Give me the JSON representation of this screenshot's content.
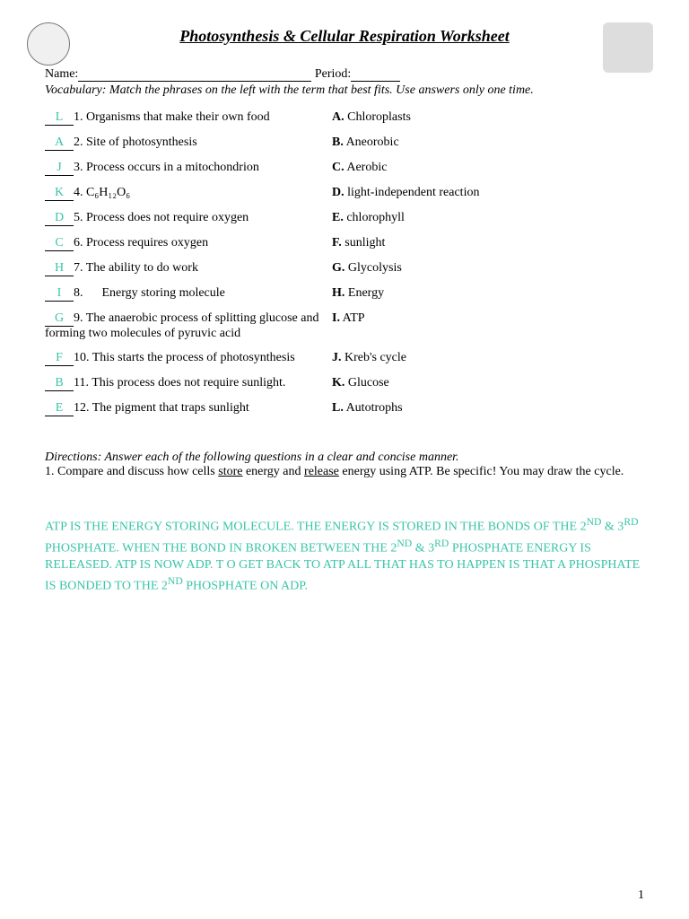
{
  "colors": {
    "answer": "#39c4a8",
    "text": "#000000",
    "bg": "#ffffff"
  },
  "title": "Photosynthesis & Cellular Respiration Worksheet",
  "name_label": "Name:",
  "period_label": "Period:",
  "vocab_instructions": "Vocabulary: Match the phrases on the left with the term that best fits. Use answers only one time.",
  "questions": [
    {
      "ans": "L",
      "num": "1.",
      "text": "Organisms that make their own food"
    },
    {
      "ans": "A",
      "num": "2.",
      "text": "Site of photosynthesis"
    },
    {
      "ans": "J",
      "num": "3.",
      "text": "Process occurs in a mitochondrion"
    },
    {
      "ans": "K",
      "num": "4.",
      "text": "C₆H₁₂O₆"
    },
    {
      "ans": "D",
      "num": "5.",
      "text": "Process does not require oxygen"
    },
    {
      "ans": "C",
      "num": "6.",
      "text": "Process requires oxygen"
    },
    {
      "ans": "H",
      "num": "7.",
      "text": "The ability to do work"
    },
    {
      "ans": "I",
      "num": "8.",
      "text": "Energy storing molecule",
      "indent": true
    },
    {
      "ans": "G",
      "num": "9.",
      "text": "The anaerobic process of splitting glucose and forming two molecules of pyruvic acid"
    },
    {
      "ans": "F",
      "num": "10.",
      "text": "This starts the process of photosynthesis"
    },
    {
      "ans": "B",
      "num": "11.",
      "text": "This process does not require sunlight."
    },
    {
      "ans": "E",
      "num": "12.",
      "text": "The pigment that traps sunlight"
    }
  ],
  "options": [
    {
      "letter": "A.",
      "text": "Chloroplasts"
    },
    {
      "letter": "B.",
      "text": "Aneorobic"
    },
    {
      "letter": "C.",
      "text": "Aerobic"
    },
    {
      "letter": "D.",
      "text": "light-independent reaction"
    },
    {
      "letter": "E.",
      "text": "chlorophyll"
    },
    {
      "letter": "F.",
      "text": "sunlight"
    },
    {
      "letter": "G.",
      "text": "Glycolysis"
    },
    {
      "letter": "H.",
      "text": "Energy"
    },
    {
      "letter": "I.",
      "text": "ATP"
    },
    {
      "letter": "J.",
      "text": "Kreb's cycle"
    },
    {
      "letter": "K.",
      "text": "Glucose"
    },
    {
      "letter": "L.",
      "text": "Autotrophs"
    }
  ],
  "directions_head": "Directions: Answer each of the following questions in a clear and concise manner.",
  "q1_prefix": "1.  Compare and discuss how cells ",
  "q1_store": "store",
  "q1_mid": " energy and ",
  "q1_release": "release",
  "q1_suffix": " energy using ATP. Be specific! You may draw the cycle.",
  "answer_paragraph_html": "ATP IS THE ENERGY STORING MOLECULE. THE ENERGY IS STORED IN THE BONDS OF THE 2<sup>ND</sup> & 3<sup>RD</sup> PHOSPHATE. WHEN THE BOND IN BROKEN BETWEEN THE 2<sup>ND</sup> & 3<sup>RD</sup> PHOSPHATE ENERGY IS RELEASED. ATP IS NOW ADP. T O GET BACK TO ATP ALL THAT HAS TO HAPPEN IS THAT A PHOSPHATE IS BONDED TO THE 2<sup>ND</sup> PHOSPHATE ON ADP.",
  "page_number": "1"
}
